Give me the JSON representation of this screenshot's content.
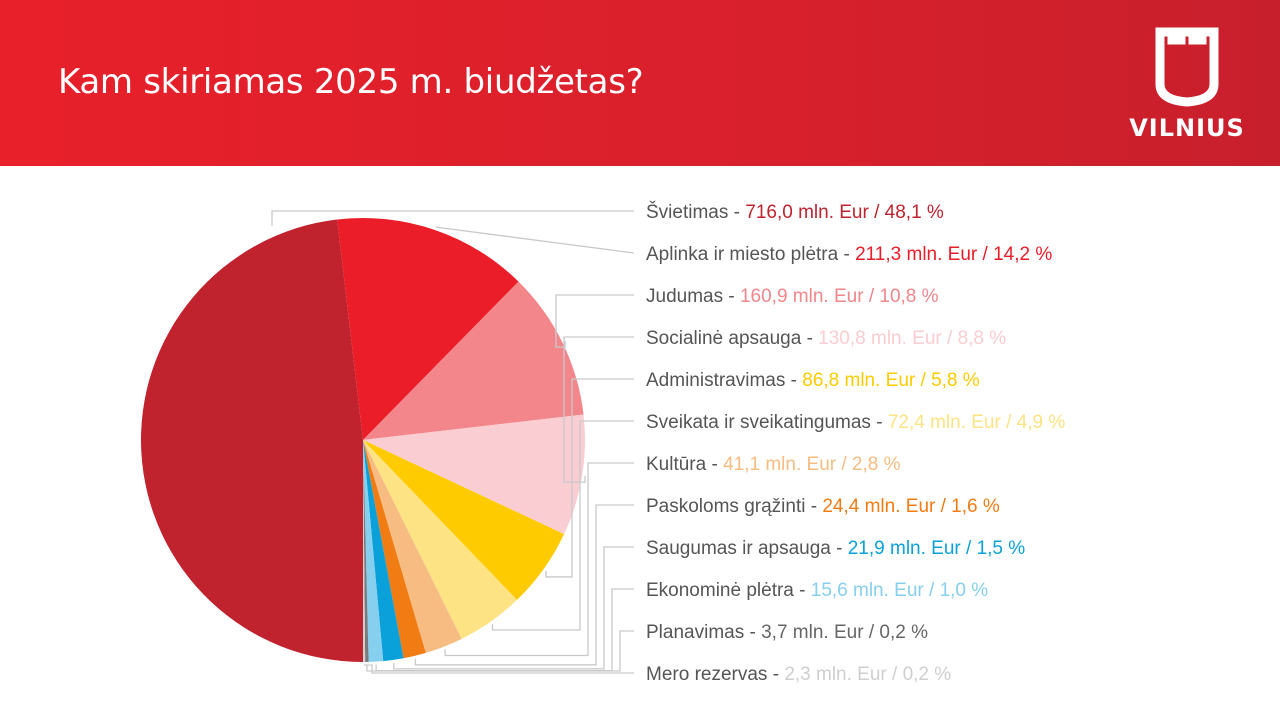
{
  "header": {
    "title": "Kam skiriamas 2025 m. biudžetas?",
    "logo_text": "VILNIUS"
  },
  "chart_data": {
    "type": "pie",
    "title": "Kam skiriamas 2025 m. biudžetas?",
    "slices": [
      {
        "name": "Švietimas",
        "value": 716.0,
        "percent": "48,1 %",
        "value_label": "716,0 mln. Eur",
        "color": "#c0222e"
      },
      {
        "name": "Aplinka ir miesto plėtra",
        "value": 211.3,
        "percent": "14,2 %",
        "value_label": "211,3 mln. Eur",
        "color": "#ea1d28"
      },
      {
        "name": "Judumas",
        "value": 160.9,
        "percent": "10,8 %",
        "value_label": "160,9 mln. Eur",
        "color": "#f2868b"
      },
      {
        "name": "Socialinė apsauga",
        "value": 130.8,
        "percent": "8,8 %",
        "value_label": "130,8 mln. Eur",
        "color": "#f9cdd1"
      },
      {
        "name": "Administravimas",
        "value": 86.8,
        "percent": "5,8 %",
        "value_label": "86,8 mln. Eur",
        "color": "#fdcb00"
      },
      {
        "name": "Sveikata ir sveikatingumas",
        "value": 72.4,
        "percent": "4,9 %",
        "value_label": "72,4 mln. Eur",
        "color": "#fde383"
      },
      {
        "name": "Kultūra",
        "value": 41.1,
        "percent": "2,8 %",
        "value_label": "41,1 mln. Eur",
        "color": "#f6bc82"
      },
      {
        "name": "Paskoloms grąžinti",
        "value": 24.4,
        "percent": "1,6 %",
        "value_label": "24,4 mln. Eur",
        "color": "#f07c13"
      },
      {
        "name": "Saugumas ir apsauga",
        "value": 21.9,
        "percent": "1,5 %",
        "value_label": "21,9 mln. Eur",
        "color": "#0aa1db"
      },
      {
        "name": "Ekonominė plėtra",
        "value": 15.6,
        "percent": "1,0 %",
        "value_label": "15,6 mln. Eur",
        "color": "#86cfee"
      },
      {
        "name": "Planavimas",
        "value": 3.7,
        "percent": "0,2 %",
        "value_label": "3,7 mln. Eur",
        "color": "#7a7a7a"
      },
      {
        "name": "Mero rezervas",
        "value": 2.3,
        "percent": "0,2 %",
        "value_label": "2,3 mln. Eur",
        "color": "#cfcfcf"
      }
    ]
  }
}
